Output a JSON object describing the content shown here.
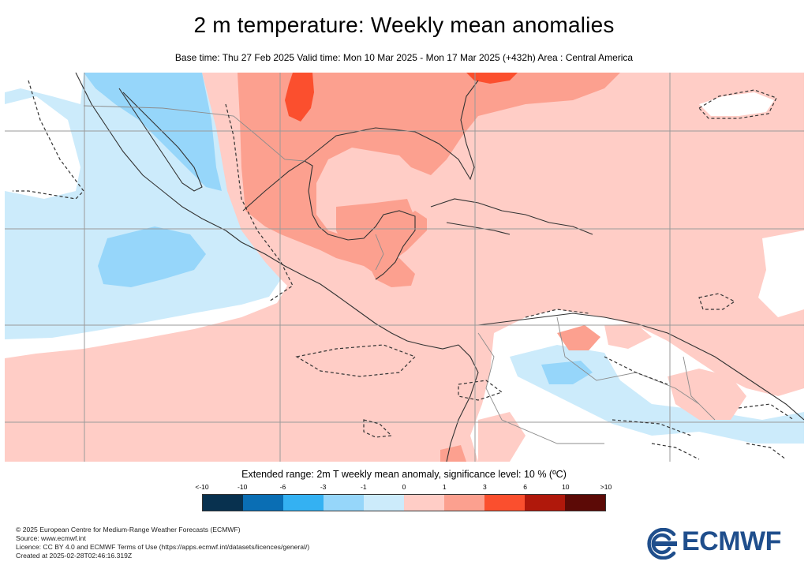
{
  "title": "2 m temperature: Weekly mean anomalies",
  "subtitle": "Base time: Thu 27 Feb 2025 Valid time: Mon 10 Mar 2025 - Mon 17 Mar 2025 (+432h) Area : Central America",
  "legend": {
    "title": "Extended range: 2m T weekly mean anomaly, significance level: 10 % (ºC)",
    "tick_labels": [
      "<-10",
      "-10",
      "-6",
      "-3",
      "-1",
      "0",
      "1",
      "3",
      "6",
      "10",
      ">10"
    ],
    "colors": [
      "#08314f",
      "#0a6eb4",
      "#34b1f2",
      "#96d6fa",
      "#ccebfb",
      "#ffffff",
      "#ffcdc6",
      "#fca08f",
      "#fb4f2e",
      "#b0180b",
      "#5c0a06"
    ]
  },
  "map_colors": {
    "ocean_warm": "#ffcdc6",
    "land_warm": "#fca08f",
    "hot": "#fb4f2e",
    "cool": "#ccebfb",
    "cooler": "#96d6fa",
    "neutral": "#ffffff",
    "coast": "#333333",
    "border": "#8c8c8c",
    "grid": "#9a9a9a",
    "significance": "#333333"
  },
  "footer": {
    "line1": "© 2025 European Centre for Medium-Range Weather Forecasts (ECMWF)",
    "line2": "Source: www.ecmwf.int",
    "line3": "Licence: CC BY 4.0 and ECMWF Terms of Use (https://apps.ecmwf.int/datasets/licences/general/)",
    "line4": "Created at 2025-02-28T02:46:16.319Z"
  },
  "logo": {
    "text": "ECMWF",
    "color": "#1f4e8c"
  }
}
